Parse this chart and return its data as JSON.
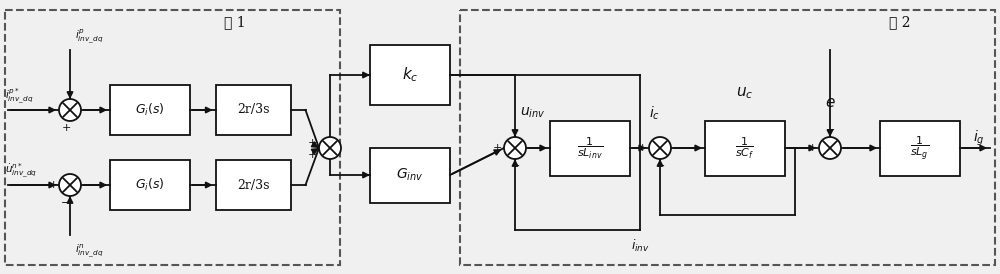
{
  "bg_color": "#f0f0f0",
  "line_color": "#111111",
  "box_fill": "#ffffff",
  "box_edge": "#111111",
  "dash_box_color": "#555555",
  "frame1_label": "框 1",
  "frame2_label": "框 2",
  "figw": 10.0,
  "figh": 2.74,
  "dpi": 100,
  "xmax": 1000,
  "ymax": 274
}
